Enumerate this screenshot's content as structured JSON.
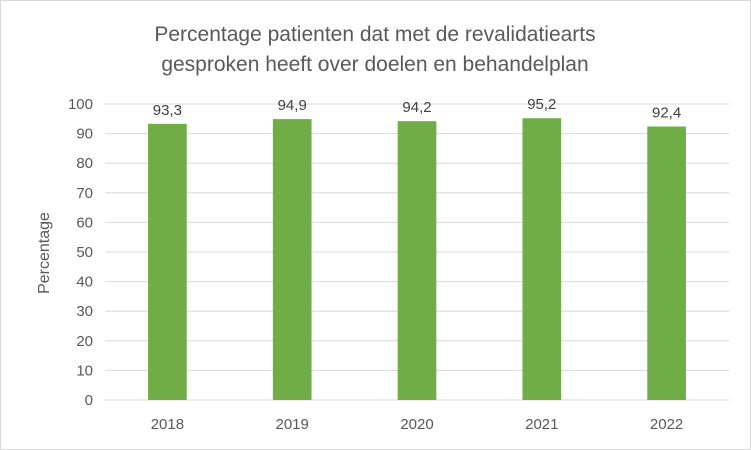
{
  "chart_data": {
    "type": "bar",
    "title_lines": [
      "Percentage patienten dat met de revalidatiearts",
      "gesproken heeft over doelen en behandelplan"
    ],
    "xlabel": "",
    "ylabel": "Percentage",
    "categories": [
      "2018",
      "2019",
      "2020",
      "2021",
      "2022"
    ],
    "values": [
      93.3,
      94.9,
      94.2,
      95.2,
      92.4
    ],
    "value_labels": [
      "93,3",
      "94,9",
      "94,2",
      "95,2",
      "92,4"
    ],
    "ylim": [
      0,
      100
    ],
    "yticks": [
      0,
      10,
      20,
      30,
      40,
      50,
      60,
      70,
      80,
      90,
      100
    ],
    "grid": true,
    "legend": "none",
    "colors": {
      "bar": "#70ad47",
      "grid": "#d9d9d9",
      "text": "#595959"
    }
  }
}
